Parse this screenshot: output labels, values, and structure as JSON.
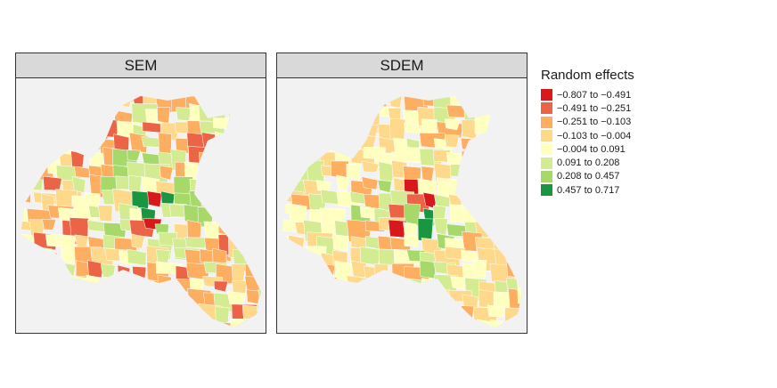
{
  "panels": [
    {
      "title": "SEM",
      "variant": 0
    },
    {
      "title": "SDEM",
      "variant": 1
    }
  ],
  "legend": {
    "title": "Random effects",
    "items": [
      {
        "label": "−0.807 to −0.491",
        "color": "#d7191c"
      },
      {
        "label": "−0.491 to −0.251",
        "color": "#ec6446"
      },
      {
        "label": "−0.251 to −0.103",
        "color": "#fdae61"
      },
      {
        "label": "−0.103 to −0.004",
        "color": "#fed98b"
      },
      {
        "label": "−0.004 to 0.091",
        "color": "#ffffbf"
      },
      {
        "label": "0.091 to 0.208",
        "color": "#d3ec91"
      },
      {
        "label": "0.208 to 0.457",
        "color": "#a6d96a"
      },
      {
        "label": "0.457 to 0.717",
        "color": "#1a9641"
      }
    ]
  }
}
